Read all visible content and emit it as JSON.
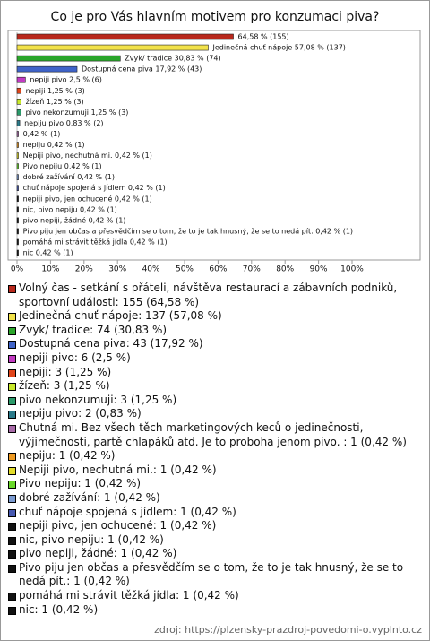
{
  "chart_data": {
    "type": "bar",
    "orientation": "horizontal",
    "title": "Co je pro Vás hlavním motivem pro konzumaci piva?",
    "values": [
      64.58,
      57.08,
      30.83,
      17.92,
      2.5,
      1.25,
      1.25,
      1.25,
      0.83,
      0.42,
      0.42,
      0.42,
      0.42,
      0.42,
      0.42,
      0.42,
      0.42,
      0.42,
      0.42,
      0.42,
      0.42
    ],
    "value_labels": [
      "64,58 % (155)",
      "Jedinečná chuť nápoje 57,08 % (137)",
      "Zvyk/ tradice 30,83 % (74)",
      "Dostupná cena piva 17,92 % (43)",
      "nepiji pivo 2,5 % (6)",
      "nepiji 1,25 % (3)",
      "žízeň 1,25 % (3)",
      "pivo nekonzumuji 1,25 % (3)",
      "nepiju pivo 0,83 % (2)",
      "0,42 % (1)",
      "nepiju 0,42 % (1)",
      "Nepiji pivo, nechutná mi. 0,42 % (1)",
      "Pivo nepiju 0,42 % (1)",
      "dobré zažívání 0,42 % (1)",
      "chuť nápoje spojená s jídlem 0,42 % (1)",
      "nepiji pivo, jen ochucené 0,42 % (1)",
      "nic, pivo nepiju 0,42 % (1)",
      "pivo nepiji, žádné 0,42 % (1)",
      "Pivo piju jen občas a přesvědčím se o tom, že to je tak hnusný, že se to nedá pít. 0,42 % (1)",
      "pomáhá mi strávit těžká jídla 0,42 % (1)",
      "nic 0,42 % (1)"
    ],
    "legend_labels": [
      "Volný čas - setkání s přáteli, návštěva restaurací a zábavních podniků, sportovní události: 155 (64,58 %)",
      "Jedinečná chuť nápoje: 137 (57,08 %)",
      "Zvyk/ tradice: 74 (30,83 %)",
      "Dostupná cena piva: 43 (17,92 %)",
      "nepiji pivo: 6 (2,5 %)",
      "nepiji: 3 (1,25 %)",
      "žízeň: 3 (1,25 %)",
      "pivo nekonzumuji: 3 (1,25 %)",
      "nepiju pivo: 2 (0,83 %)",
      "Chutná mi. Bez všech těch marketingových keců o jedinečnosti, výjimečnosti, partě chlapáků atd. Je to proboha jenom pivo. : 1 (0,42 %)",
      "nepiju: 1 (0,42 %)",
      "Nepiji pivo, nechutná mi.: 1 (0,42 %)",
      "Pivo nepiju: 1 (0,42 %)",
      "dobré zažívání: 1 (0,42 %)",
      "chuť nápoje spojená s jídlem: 1 (0,42 %)",
      "nepiji pivo, jen ochucené: 1 (0,42 %)",
      "nic, pivo nepiju: 1 (0,42 %)",
      "pivo nepiji, žádné: 1 (0,42 %)",
      "Pivo piju jen občas a přesvědčím se o tom, že to je tak hnusný, že se to nedá pít.: 1 (0,42 %)",
      "pomáhá mi strávit těžká jídla: 1 (0,42 %)",
      "nic: 1 (0,42 %)"
    ],
    "colors": [
      "#b8281c",
      "#f2e24a",
      "#2aa52a",
      "#3f63c8",
      "#c23ac2",
      "#e0451a",
      "#c8e82a",
      "#2a9a6a",
      "#2a7a8a",
      "#a86aa8",
      "#ee9a22",
      "#e2dc2a",
      "#6ad82a",
      "#7a9ad0",
      "#4658b0",
      "#111111",
      "#111111",
      "#111111",
      "#111111",
      "#111111",
      "#111111"
    ],
    "xlim": [
      0,
      100
    ],
    "xticks": [
      {
        "value": 0,
        "label": "0%"
      },
      {
        "value": 10,
        "label": "10%"
      },
      {
        "value": 20,
        "label": "20%"
      },
      {
        "value": 30,
        "label": "30%"
      },
      {
        "value": 40,
        "label": "40%"
      },
      {
        "value": 50,
        "label": "50%"
      },
      {
        "value": 60,
        "label": "60%"
      },
      {
        "value": 70,
        "label": "70%"
      },
      {
        "value": 80,
        "label": "80%"
      },
      {
        "value": 90,
        "label": "90%"
      },
      {
        "value": 100,
        "label": "100%"
      }
    ],
    "source": "zdroj: https://plzensky-prazdroj-povedomi-o.vyplnto.cz"
  }
}
